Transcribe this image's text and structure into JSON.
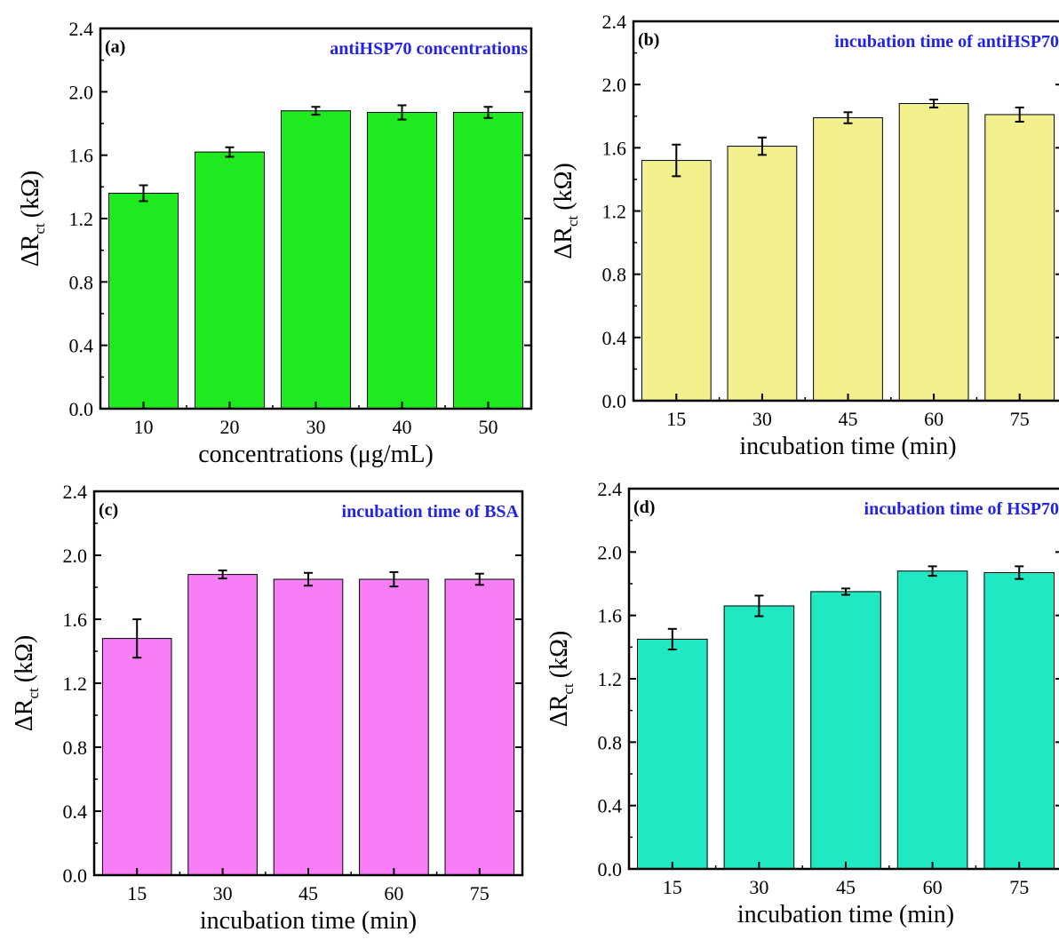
{
  "chart_data": [
    {
      "type": "bar",
      "panel_label": "(a)",
      "title": "antiHSP70 concentrations",
      "title_color": "#2323e6",
      "xlabel": "concentrations (μg/mL)",
      "ylabel_main": "ΔR",
      "ylabel_sub": "ct",
      "ylabel_unit": "(kΩ)",
      "categories": [
        "10",
        "20",
        "30",
        "40",
        "50"
      ],
      "values": [
        1.36,
        1.62,
        1.88,
        1.87,
        1.87
      ],
      "errors": [
        0.05,
        0.03,
        0.025,
        0.045,
        0.035
      ],
      "ylim": [
        0,
        2.4
      ],
      "yticks": [
        "0.0",
        "0.4",
        "0.8",
        "1.2",
        "1.6",
        "2.0",
        "2.4"
      ],
      "bar_color": "#1fea1f"
    },
    {
      "type": "bar",
      "panel_label": "(b)",
      "title": "incubation time of antiHSP70",
      "title_color": "#2323e6",
      "xlabel": "incubation time  (min)",
      "ylabel_main": "ΔR",
      "ylabel_sub": "ct",
      "ylabel_unit": "(kΩ)",
      "categories": [
        "15",
        "30",
        "45",
        "60",
        "75"
      ],
      "values": [
        1.52,
        1.61,
        1.79,
        1.88,
        1.81
      ],
      "errors": [
        0.1,
        0.055,
        0.035,
        0.025,
        0.045
      ],
      "ylim": [
        0,
        2.4
      ],
      "yticks": [
        "0.0",
        "0.4",
        "0.8",
        "1.2",
        "1.6",
        "2.0",
        "2.4"
      ],
      "bar_color": "#f3f08e"
    },
    {
      "type": "bar",
      "panel_label": "(c)",
      "title": "incubation time of BSA",
      "title_color": "#2323e6",
      "xlabel": "incubation time (min)",
      "ylabel_main": "ΔR",
      "ylabel_sub": "ct",
      "ylabel_unit": "(kΩ)",
      "categories": [
        "15",
        "30",
        "45",
        "60",
        "75"
      ],
      "values": [
        1.48,
        1.88,
        1.85,
        1.85,
        1.85
      ],
      "errors": [
        0.12,
        0.025,
        0.04,
        0.045,
        0.035
      ],
      "ylim": [
        0,
        2.4
      ],
      "yticks": [
        "0.0",
        "0.4",
        "0.8",
        "1.2",
        "1.6",
        "2.0",
        "2.4"
      ],
      "bar_color": "#f77ef7"
    },
    {
      "type": "bar",
      "panel_label": "(d)",
      "title": "incubation time of HSP70",
      "title_color": "#2323e6",
      "xlabel": "incubation time (min)",
      "ylabel_main": "ΔR",
      "ylabel_sub": "ct",
      "ylabel_unit": "(kΩ)",
      "categories": [
        "15",
        "30",
        "45",
        "60",
        "75"
      ],
      "values": [
        1.45,
        1.66,
        1.75,
        1.88,
        1.87
      ],
      "errors": [
        0.065,
        0.065,
        0.02,
        0.03,
        0.04
      ],
      "ylim": [
        0,
        2.4
      ],
      "yticks": [
        "0.0",
        "0.4",
        "0.8",
        "1.2",
        "1.6",
        "2.0",
        "2.4"
      ],
      "bar_color": "#1fe8c2"
    }
  ]
}
